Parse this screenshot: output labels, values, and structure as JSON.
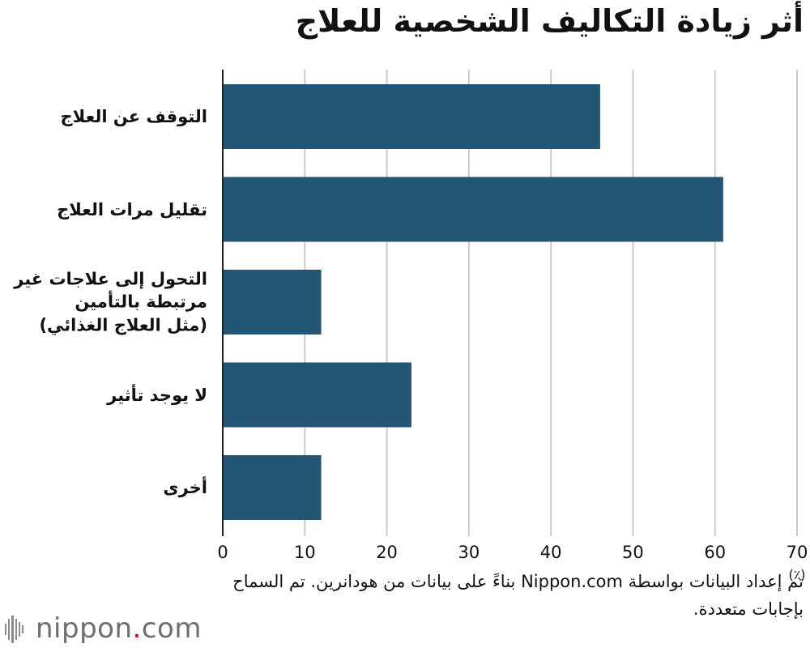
{
  "chart_data": {
    "type": "bar",
    "orientation": "horizontal",
    "title": "أثر زيادة التكاليف الشخصية للعلاج",
    "categories": [
      "التوقف عن العلاج",
      "تقليل مرات العلاج",
      "التحول إلى علاجات غير مرتبطة بالتأمين (مثل العلاج الغذائي)",
      "لا يوجد تأثير",
      "أخرى"
    ],
    "category_lines": [
      [
        "التوقف عن العلاج"
      ],
      [
        "تقليل مرات العلاج"
      ],
      [
        "التحول إلى علاجات غير",
        "مرتبطة بالتأمين",
        "(مثل العلاج الغذائي)"
      ],
      [
        "لا يوجد تأثير"
      ],
      [
        "أخرى"
      ]
    ],
    "values": [
      46,
      61,
      12,
      23,
      12
    ],
    "xlim": [
      0,
      70
    ],
    "xticks": [
      "0",
      "10",
      "20",
      "30",
      "40",
      "50",
      "60",
      "70"
    ],
    "unit": "(٪)",
    "bar_color": "#235574",
    "grid_color": "#cccccc",
    "grid": true
  },
  "source_note": "تم إعداد البيانات بواسطة Nippon.com بناءً على بيانات من هودانرين. تم السماح بإجابات متعددة.",
  "logo": {
    "text": "nippon.com",
    "accent_color": "#e60012"
  }
}
